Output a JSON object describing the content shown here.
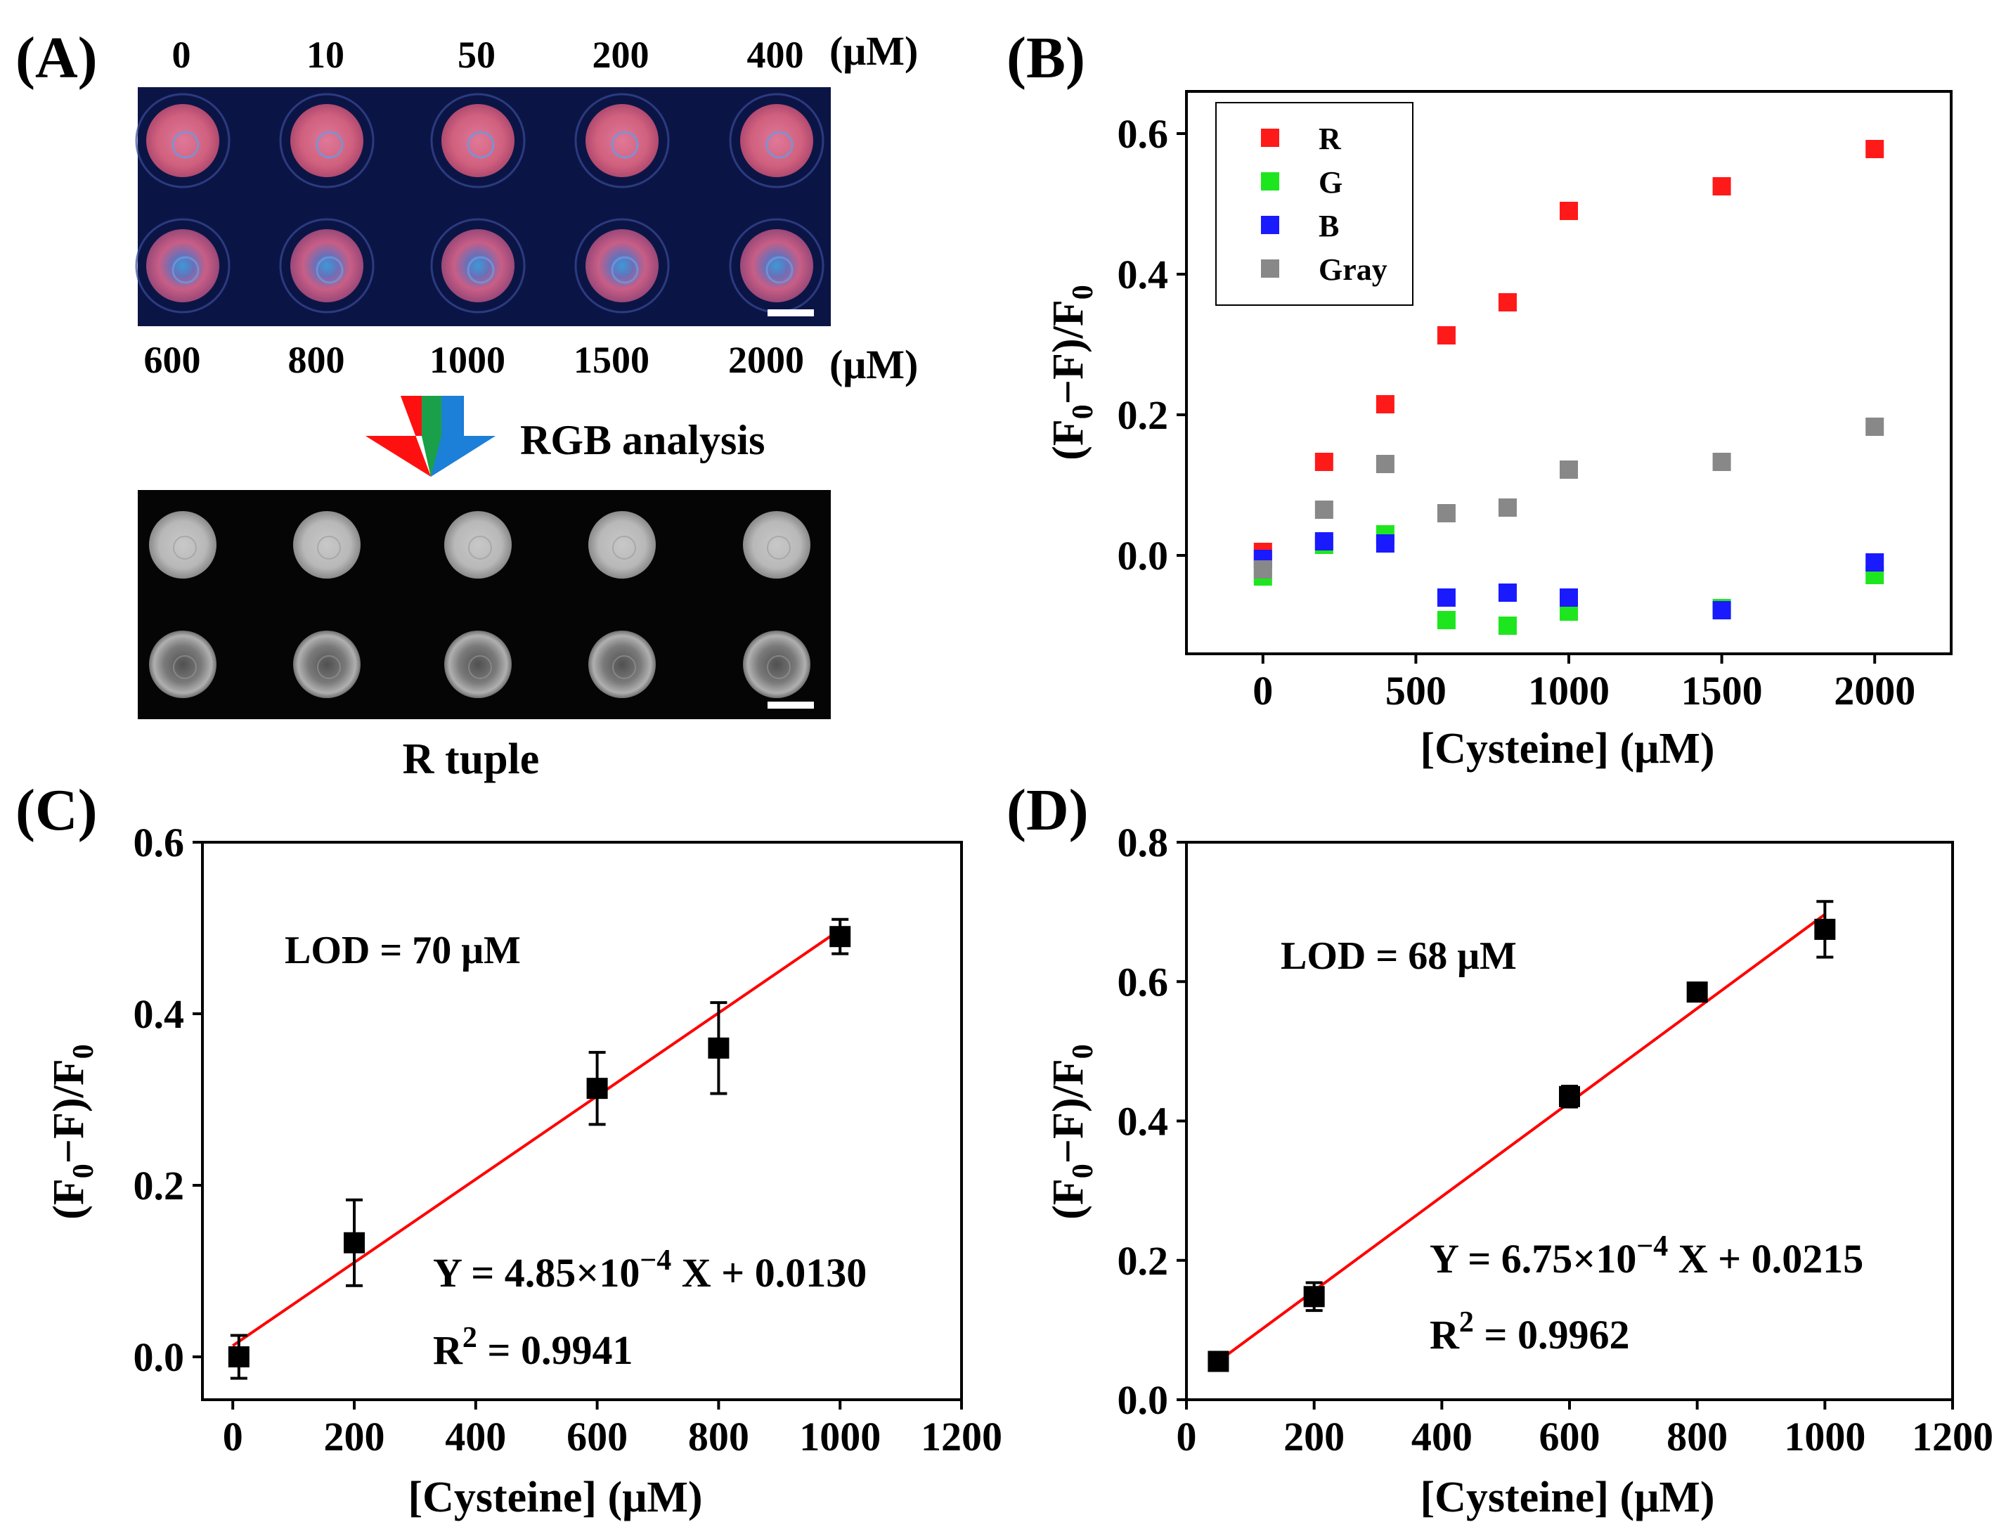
{
  "panels": {
    "A": {
      "label": "(A)",
      "top_concentrations": [
        "0",
        "10",
        "50",
        "200",
        "400"
      ],
      "bottom_concentrations": [
        "600",
        "800",
        "1000",
        "1500",
        "2000"
      ],
      "unit": "(μM)",
      "arrow_text": "RGB analysis",
      "r_tuple_caption": "R tuple",
      "colors": {
        "plate_bg": "#0c1440",
        "well_pink": "#d86a8a",
        "well_blue": "#3a7ad8",
        "arrow_red": "#ff1010",
        "arrow_green": "#18a050",
        "arrow_blue": "#1a78d8",
        "gray_bg": "#050505"
      }
    },
    "B": {
      "label": "(B)"
    },
    "C": {
      "label": "(C)"
    },
    "D": {
      "label": "(D)"
    }
  },
  "chart_data": [
    {
      "id": "B",
      "type": "scatter",
      "xlabel": "[Cysteine] (μM)",
      "ylabel_main": "(F",
      "ylabel_sub": "0",
      "ylabel_mid": "−F)/F",
      "ylabel_sub2": "0",
      "xlim": [
        -250,
        2250
      ],
      "ylim": [
        -0.14,
        0.66
      ],
      "xticks": [
        0,
        500,
        1000,
        1500,
        2000
      ],
      "xtick_labels": [
        "0",
        "500",
        "1000",
        "1500",
        "2000"
      ],
      "yticks": [
        0.0,
        0.2,
        0.4,
        0.6
      ],
      "ytick_labels": [
        "0.0",
        "0.2",
        "0.4",
        "0.6"
      ],
      "legend_position": "top-left",
      "x": [
        0,
        200,
        400,
        600,
        800,
        1000,
        1500,
        2000
      ],
      "series": [
        {
          "name": "R",
          "color": "#ff1a1a",
          "values": [
            0.005,
            0.133,
            0.215,
            0.313,
            0.36,
            0.49,
            0.525,
            0.578
          ]
        },
        {
          "name": "G",
          "color": "#1ee61e",
          "values": [
            -0.03,
            0.015,
            0.03,
            -0.092,
            -0.1,
            -0.08,
            -0.075,
            -0.028
          ]
        },
        {
          "name": "B",
          "color": "#1a1aff",
          "values": [
            -0.005,
            0.02,
            0.017,
            -0.06,
            -0.053,
            -0.06,
            -0.078,
            -0.01
          ]
        },
        {
          "name": "Gray",
          "color": "#888888",
          "values": [
            -0.02,
            0.065,
            0.13,
            0.06,
            0.068,
            0.122,
            0.133,
            0.183
          ]
        }
      ]
    },
    {
      "id": "C",
      "type": "scatter",
      "xlabel": "[Cysteine] (μM)",
      "ylabel_main": "(F",
      "ylabel_sub": "0",
      "ylabel_mid": "−F)/F",
      "ylabel_sub2": "0",
      "xlim": [
        -50,
        1200
      ],
      "ylim": [
        -0.05,
        0.6
      ],
      "xticks": [
        0,
        200,
        400,
        600,
        800,
        1000,
        1200
      ],
      "xtick_labels": [
        "0",
        "200",
        "400",
        "600",
        "800",
        "1000",
        "1200"
      ],
      "yticks": [
        0.0,
        0.2,
        0.4,
        0.6
      ],
      "ytick_labels": [
        "0.0",
        "0.2",
        "0.4",
        "0.6"
      ],
      "x": [
        10,
        200,
        600,
        800,
        1000
      ],
      "y": [
        0.0,
        0.133,
        0.313,
        0.36,
        0.49
      ],
      "yerr": [
        0.025,
        0.05,
        0.042,
        0.053,
        0.02
      ],
      "fit": {
        "slope": 0.000485,
        "intercept": 0.013,
        "x_start": 0,
        "x_end": 1000,
        "color": "#ff0000"
      },
      "lod_text": "LOD = 70 μM",
      "eq_prefix": "Y = 4.85×10",
      "eq_exp": "−4",
      "eq_suffix": " X + 0.0130",
      "r2_prefix": "R",
      "r2_exp": "2",
      "r2_suffix": " = 0.9941"
    },
    {
      "id": "D",
      "type": "scatter",
      "xlabel": "[Cysteine] (μM)",
      "ylabel_main": "(F",
      "ylabel_sub": "0",
      "ylabel_mid": "−F)/F",
      "ylabel_sub2": "0",
      "xlim": [
        0,
        1200
      ],
      "ylim": [
        0.0,
        0.8
      ],
      "xticks": [
        0,
        200,
        400,
        600,
        800,
        1000,
        1200
      ],
      "xtick_labels": [
        "0",
        "200",
        "400",
        "600",
        "800",
        "1000",
        "1200"
      ],
      "yticks": [
        0.0,
        0.2,
        0.4,
        0.6,
        0.8
      ],
      "ytick_labels": [
        "0.0",
        "0.2",
        "0.4",
        "0.6",
        "0.8"
      ],
      "x": [
        50,
        200,
        600,
        800,
        1000
      ],
      "y": [
        0.055,
        0.148,
        0.435,
        0.585,
        0.675
      ],
      "yerr": [
        0.01,
        0.02,
        0.015,
        0.01,
        0.04
      ],
      "fit": {
        "slope": 0.000675,
        "intercept": 0.0215,
        "x_start": 50,
        "x_end": 1000,
        "color": "#ff0000"
      },
      "lod_text": "LOD = 68 μM",
      "eq_prefix": "Y = 6.75×10",
      "eq_exp": "−4",
      "eq_suffix": " X + 0.0215",
      "r2_prefix": "R",
      "r2_exp": "2",
      "r2_suffix": " = 0.9962"
    }
  ]
}
